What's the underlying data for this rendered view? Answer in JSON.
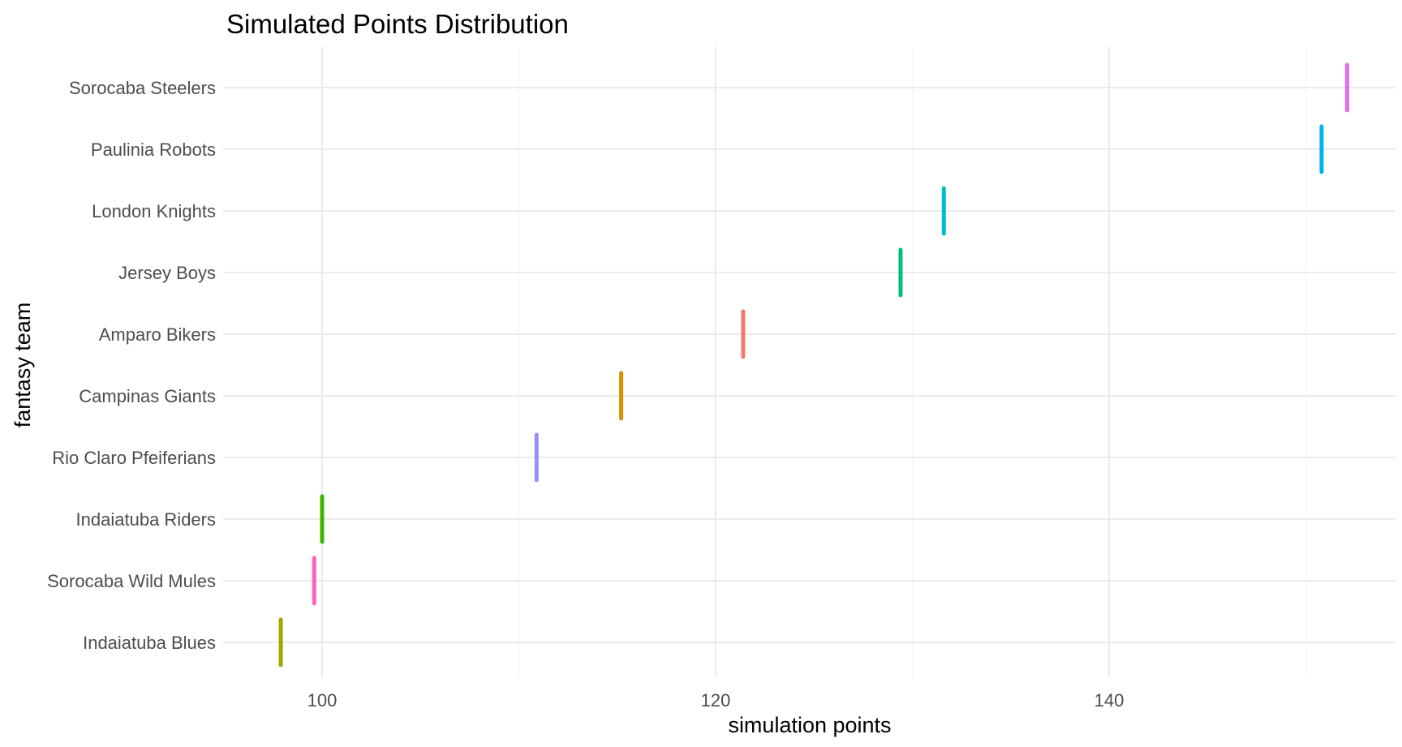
{
  "chart_data": {
    "type": "scatter",
    "title": "Simulated Points Distribution",
    "xlabel": "simulation points",
    "ylabel": "fantasy team",
    "xlim": [
      95,
      155
    ],
    "x_ticks": [
      100,
      120,
      140
    ],
    "grid": true,
    "legend": "none",
    "categories": [
      "Indaiatuba Blues",
      "Sorocaba Wild Mules",
      "Indaiatuba Riders",
      "Rio Claro Pfeiferians",
      "Campinas Giants",
      "Amparo Bikers",
      "Jersey Boys",
      "London Knights",
      "Paulinia Robots",
      "Sorocaba Steelers"
    ],
    "values": [
      97.9,
      99.6,
      100.0,
      110.9,
      115.2,
      121.4,
      129.4,
      131.6,
      150.8,
      152.1
    ],
    "colors": [
      "#A3A500",
      "#FF62BC",
      "#39B600",
      "#9590FF",
      "#D89000",
      "#F8766D",
      "#00BF7D",
      "#00BFC4",
      "#00B0F6",
      "#E76BF3"
    ]
  }
}
